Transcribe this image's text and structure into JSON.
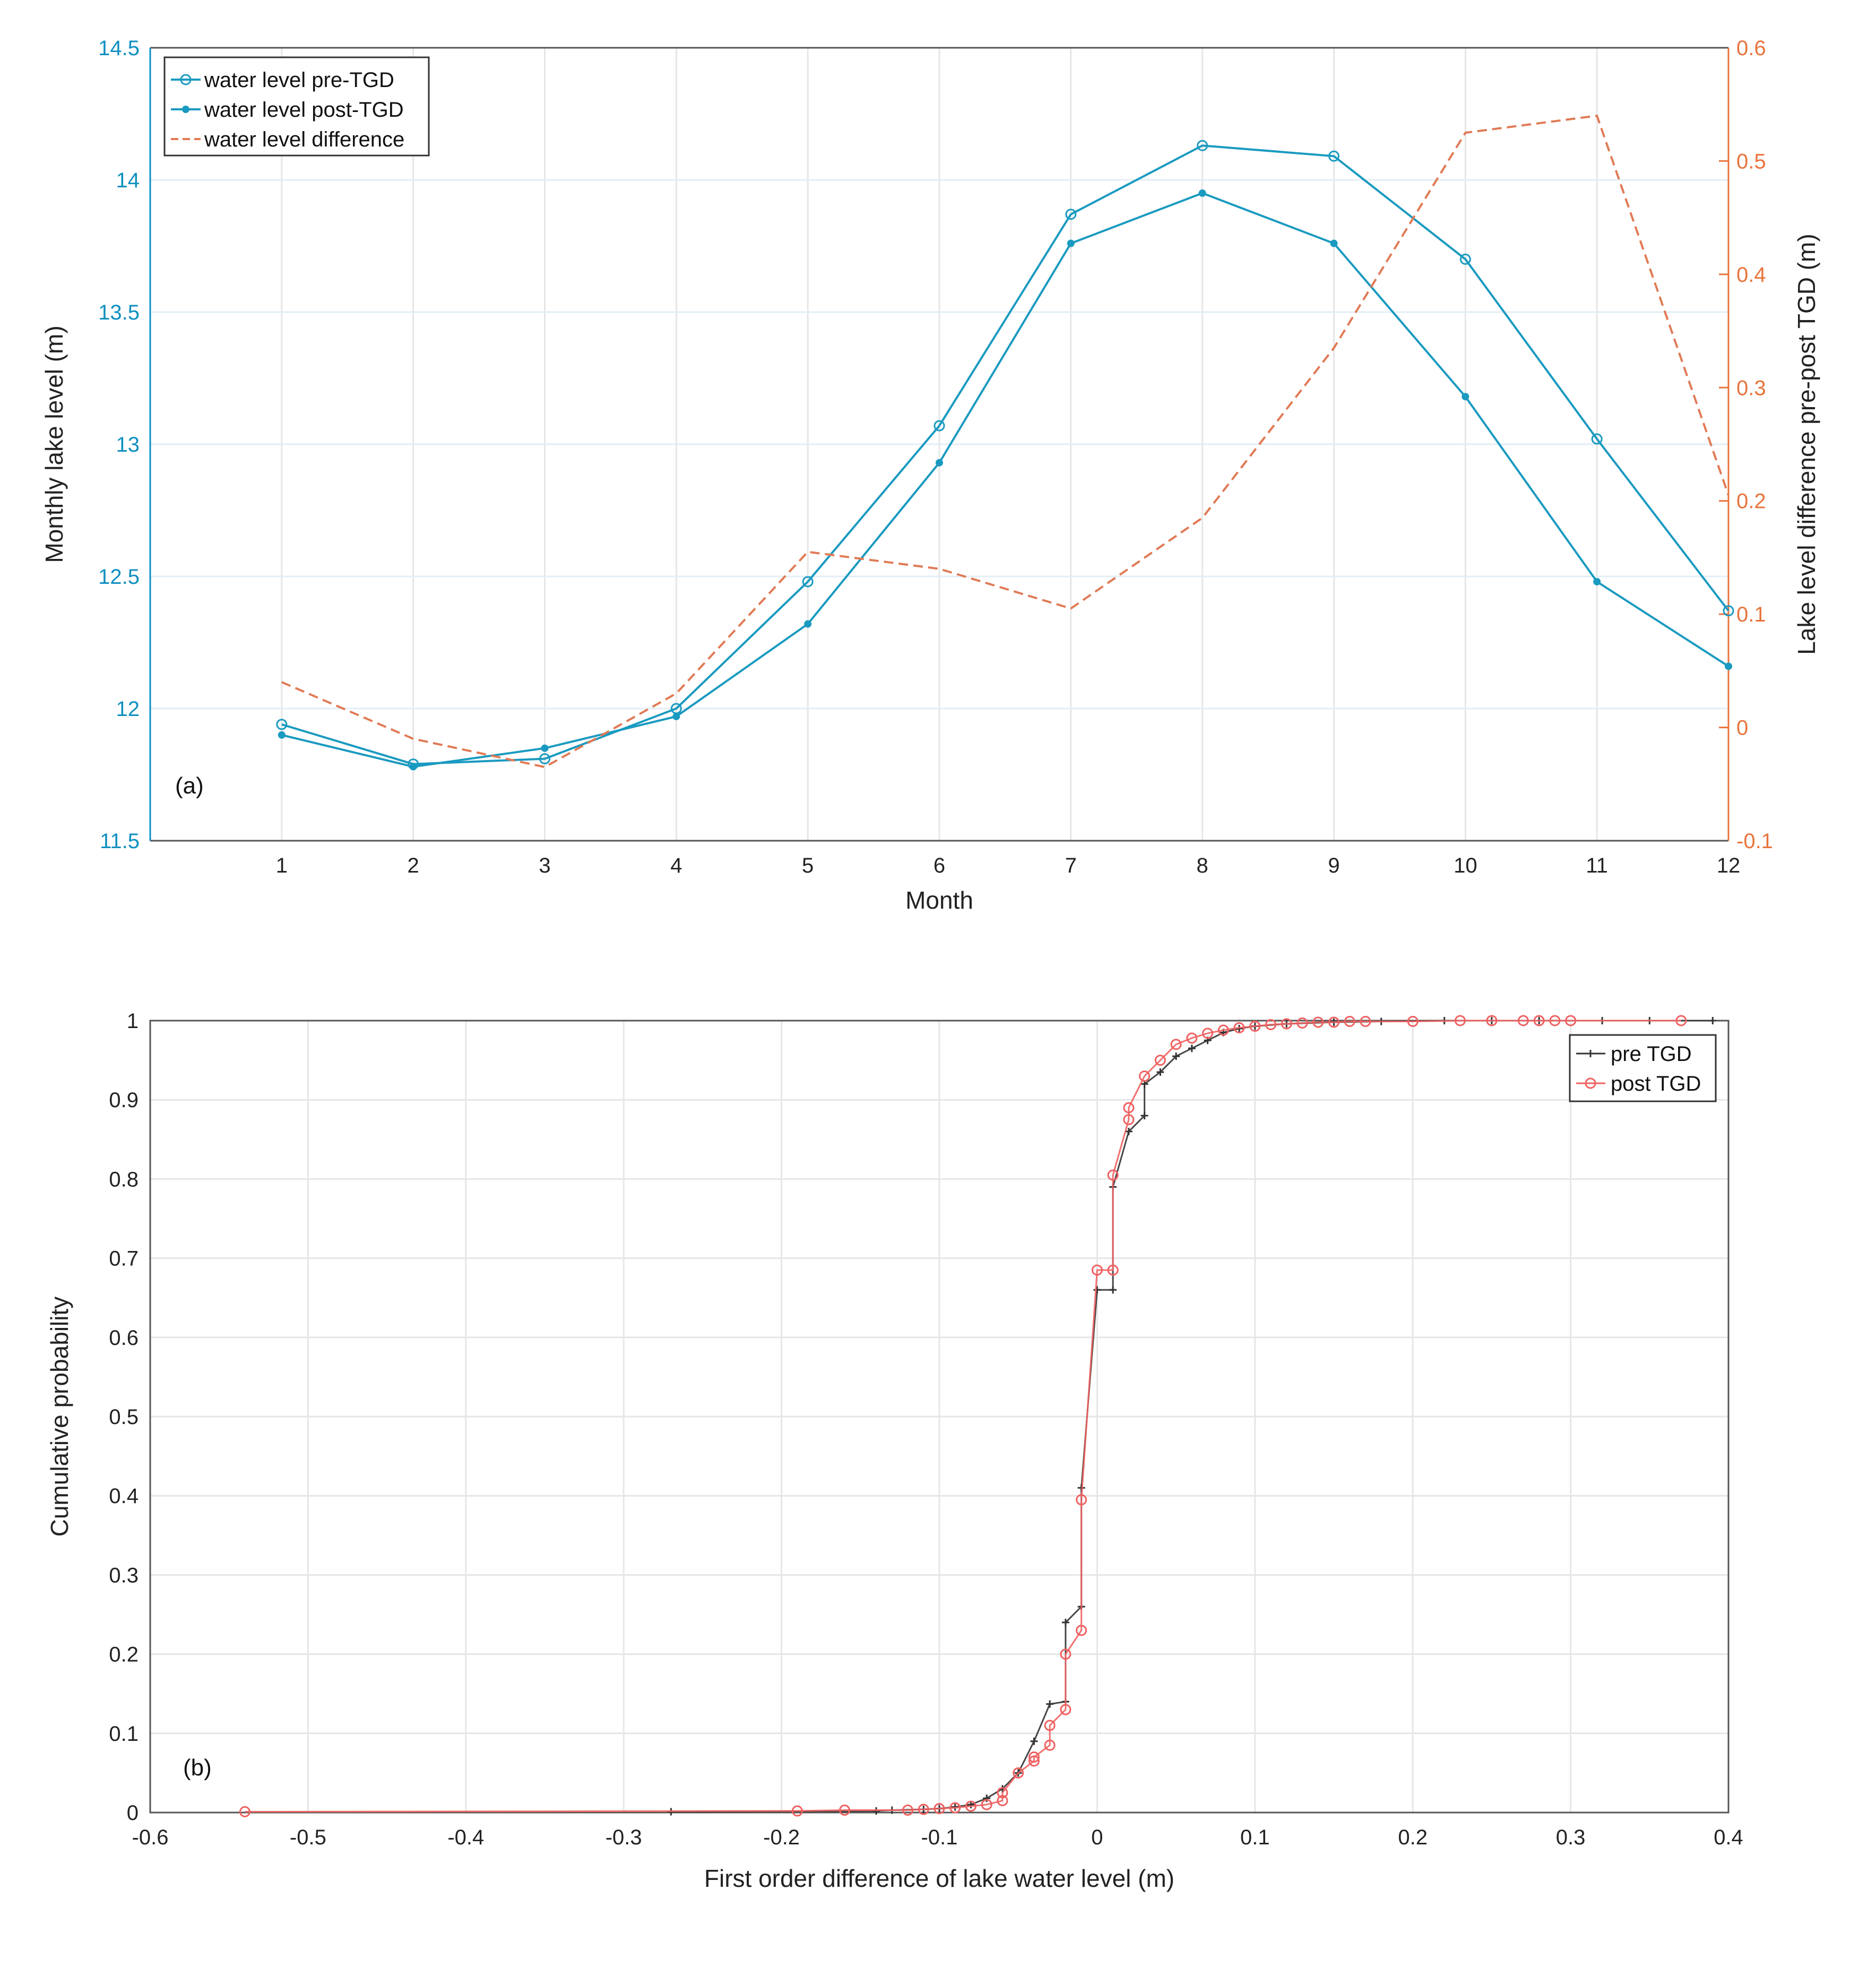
{
  "chart_data": [
    {
      "type": "line",
      "panel_label": "(a)",
      "xlabel": "Month",
      "ylabel": "Monthly lake level (m)",
      "ylabel_right": "Lake level difference pre-post TGD (m)",
      "xlim": [
        0,
        12
      ],
      "ylim": [
        11.5,
        14.5
      ],
      "ylim_right": [
        -0.1,
        0.6
      ],
      "xticks": [
        "1",
        "2",
        "3",
        "4",
        "5",
        "6",
        "7",
        "8",
        "9",
        "10",
        "11",
        "12"
      ],
      "yticks": [
        "11.5",
        "12",
        "12.5",
        "13",
        "13.5",
        "14",
        "14.5"
      ],
      "yticks_right": [
        "-0.1",
        "0",
        "0.1",
        "0.2",
        "0.3",
        "0.4",
        "0.5",
        "0.6"
      ],
      "legend_position": "top-left",
      "x": [
        1,
        2,
        3,
        4,
        5,
        6,
        7,
        8,
        9,
        10,
        11,
        12
      ],
      "series": [
        {
          "name": "water level pre-TGD",
          "axis": "left",
          "color": "#1a9ac0",
          "marker": "circle",
          "values": [
            11.94,
            11.79,
            11.81,
            12.0,
            12.48,
            13.07,
            13.87,
            14.13,
            14.09,
            13.7,
            13.02,
            12.37
          ]
        },
        {
          "name": "water level post-TGD",
          "axis": "left",
          "color": "#1a9ac0",
          "marker": "dot",
          "values": [
            11.9,
            11.78,
            11.85,
            11.97,
            12.32,
            12.93,
            13.76,
            13.95,
            13.76,
            13.18,
            12.48,
            12.16
          ]
        },
        {
          "name": "water level difference",
          "axis": "right",
          "color": "#e07a55",
          "dashed": true,
          "values": [
            0.04,
            -0.01,
            -0.035,
            0.03,
            0.155,
            0.14,
            0.105,
            0.185,
            0.335,
            0.525,
            0.54,
            0.205
          ]
        }
      ],
      "colors": {
        "left_axis": "#0e8fc0",
        "right_axis": "#e8743b"
      }
    },
    {
      "type": "line",
      "panel_label": "(b)",
      "xlabel": "First order difference of lake water level (m)",
      "ylabel": "Cumulative probability",
      "xlim": [
        -0.6,
        0.4
      ],
      "ylim": [
        0,
        1
      ],
      "xticks": [
        "-0.6",
        "-0.5",
        "-0.4",
        "-0.3",
        "-0.2",
        "-0.1",
        "0",
        "0.1",
        "0.2",
        "0.3",
        "0.4"
      ],
      "yticks": [
        "0",
        "0.1",
        "0.2",
        "0.3",
        "0.4",
        "0.5",
        "0.6",
        "0.7",
        "0.8",
        "0.9",
        "1"
      ],
      "legend_position": "top-right",
      "series": [
        {
          "name": "pre TGD",
          "color": "#333333",
          "marker": "plus",
          "x": [
            -0.27,
            -0.14,
            -0.13,
            -0.11,
            -0.1,
            -0.09,
            -0.08,
            -0.07,
            -0.06,
            -0.05,
            -0.04,
            -0.03,
            -0.02,
            -0.02,
            -0.01,
            -0.01,
            0,
            0.01,
            0.01,
            0.02,
            0.03,
            0.03,
            0.04,
            0.05,
            0.06,
            0.07,
            0.08,
            0.09,
            0.1,
            0.12,
            0.15,
            0.18,
            0.22,
            0.25,
            0.28,
            0.32,
            0.35,
            0.39
          ],
          "y": [
            0.001,
            0.002,
            0.003,
            0.004,
            0.005,
            0.007,
            0.01,
            0.018,
            0.03,
            0.05,
            0.09,
            0.137,
            0.14,
            0.24,
            0.26,
            0.41,
            0.66,
            0.66,
            0.79,
            0.86,
            0.88,
            0.92,
            0.935,
            0.955,
            0.965,
            0.975,
            0.985,
            0.99,
            0.993,
            0.996,
            0.998,
            0.999,
            1,
            1,
            1,
            1,
            1,
            1
          ]
        },
        {
          "name": "post TGD",
          "color": "#f06060",
          "marker": "circle",
          "x": [
            -0.54,
            -0.19,
            -0.16,
            -0.12,
            -0.11,
            -0.1,
            -0.09,
            -0.08,
            -0.07,
            -0.06,
            -0.06,
            -0.05,
            -0.04,
            -0.04,
            -0.03,
            -0.03,
            -0.02,
            -0.02,
            -0.01,
            -0.01,
            0,
            0.01,
            0.01,
            0.02,
            0.02,
            0.03,
            0.04,
            0.05,
            0.06,
            0.07,
            0.08,
            0.09,
            0.1,
            0.11,
            0.12,
            0.13,
            0.14,
            0.15,
            0.16,
            0.17,
            0.2,
            0.23,
            0.25,
            0.27,
            0.28,
            0.29,
            0.3,
            0.37
          ],
          "y": [
            0.001,
            0.002,
            0.003,
            0.003,
            0.004,
            0.005,
            0.006,
            0.008,
            0.01,
            0.015,
            0.025,
            0.05,
            0.065,
            0.07,
            0.085,
            0.11,
            0.13,
            0.2,
            0.23,
            0.395,
            0.685,
            0.685,
            0.805,
            0.875,
            0.89,
            0.93,
            0.95,
            0.97,
            0.978,
            0.984,
            0.988,
            0.991,
            0.993,
            0.995,
            0.996,
            0.997,
            0.998,
            0.998,
            0.999,
            0.999,
            0.999,
            1,
            1,
            1,
            1,
            1,
            1,
            1
          ]
        }
      ]
    }
  ]
}
